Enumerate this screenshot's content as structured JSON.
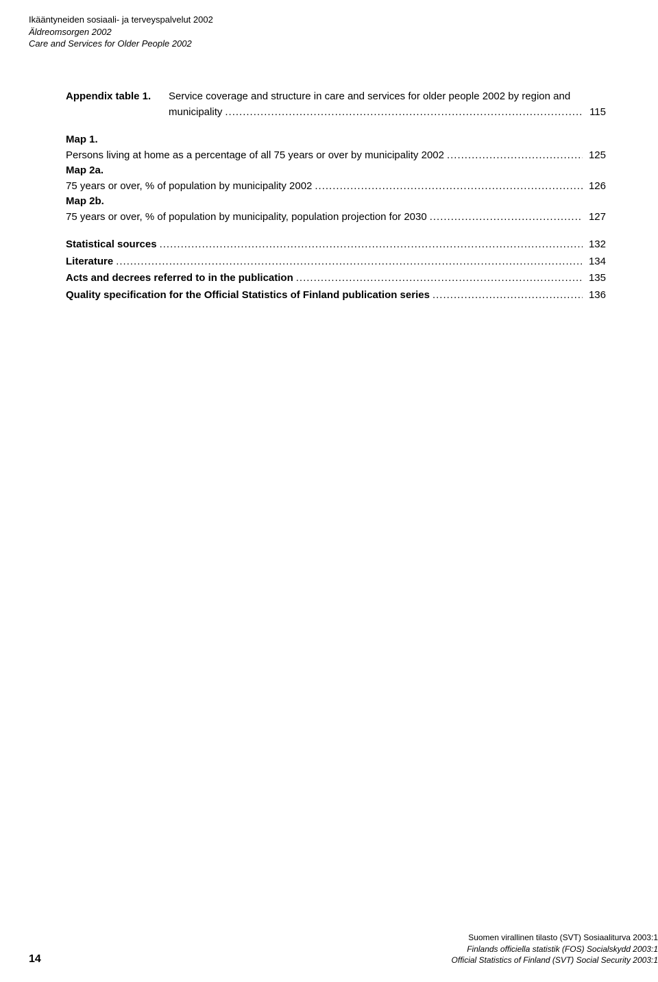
{
  "header": {
    "line1": "Ikääntyneiden sosiaali- ja terveyspalvelut 2002",
    "line2": "Äldreomsorgen 2002",
    "line3": "Care and Services for Older People 2002"
  },
  "toc": {
    "appendix": {
      "label": "Appendix table 1.",
      "desc1": "Service coverage and structure in care and services for older people 2002 by region and",
      "desc2": "municipality",
      "page": "115"
    },
    "maps": [
      {
        "label": "Map 1.",
        "desc": "Persons living at home as a percentage of all 75 years or over by municipality 2002",
        "page": "125"
      },
      {
        "label": "Map 2a.",
        "desc": "75 years or over, % of population by municipality 2002",
        "page": "126"
      },
      {
        "label": "Map 2b.",
        "desc": "75 years or over, % of population by municipality, population projection for 2030",
        "page": "127"
      }
    ],
    "sections": [
      {
        "label": "Statistical sources",
        "page": "132"
      },
      {
        "label": "Literature",
        "page": "134"
      },
      {
        "label": "Acts and decrees referred to in the publication",
        "page": "135"
      },
      {
        "label": "Quality specification for the Official Statistics of Finland publication series",
        "page": "136"
      }
    ]
  },
  "footer": {
    "pagenum": "14",
    "line1": "Suomen virallinen tilasto (SVT) Sosiaaliturva 2003:1",
    "line2": "Finlands officiella statistik (FOS) Socialskydd 2003:1",
    "line3": "Official Statistics of Finland (SVT) Social Security 2003:1"
  }
}
